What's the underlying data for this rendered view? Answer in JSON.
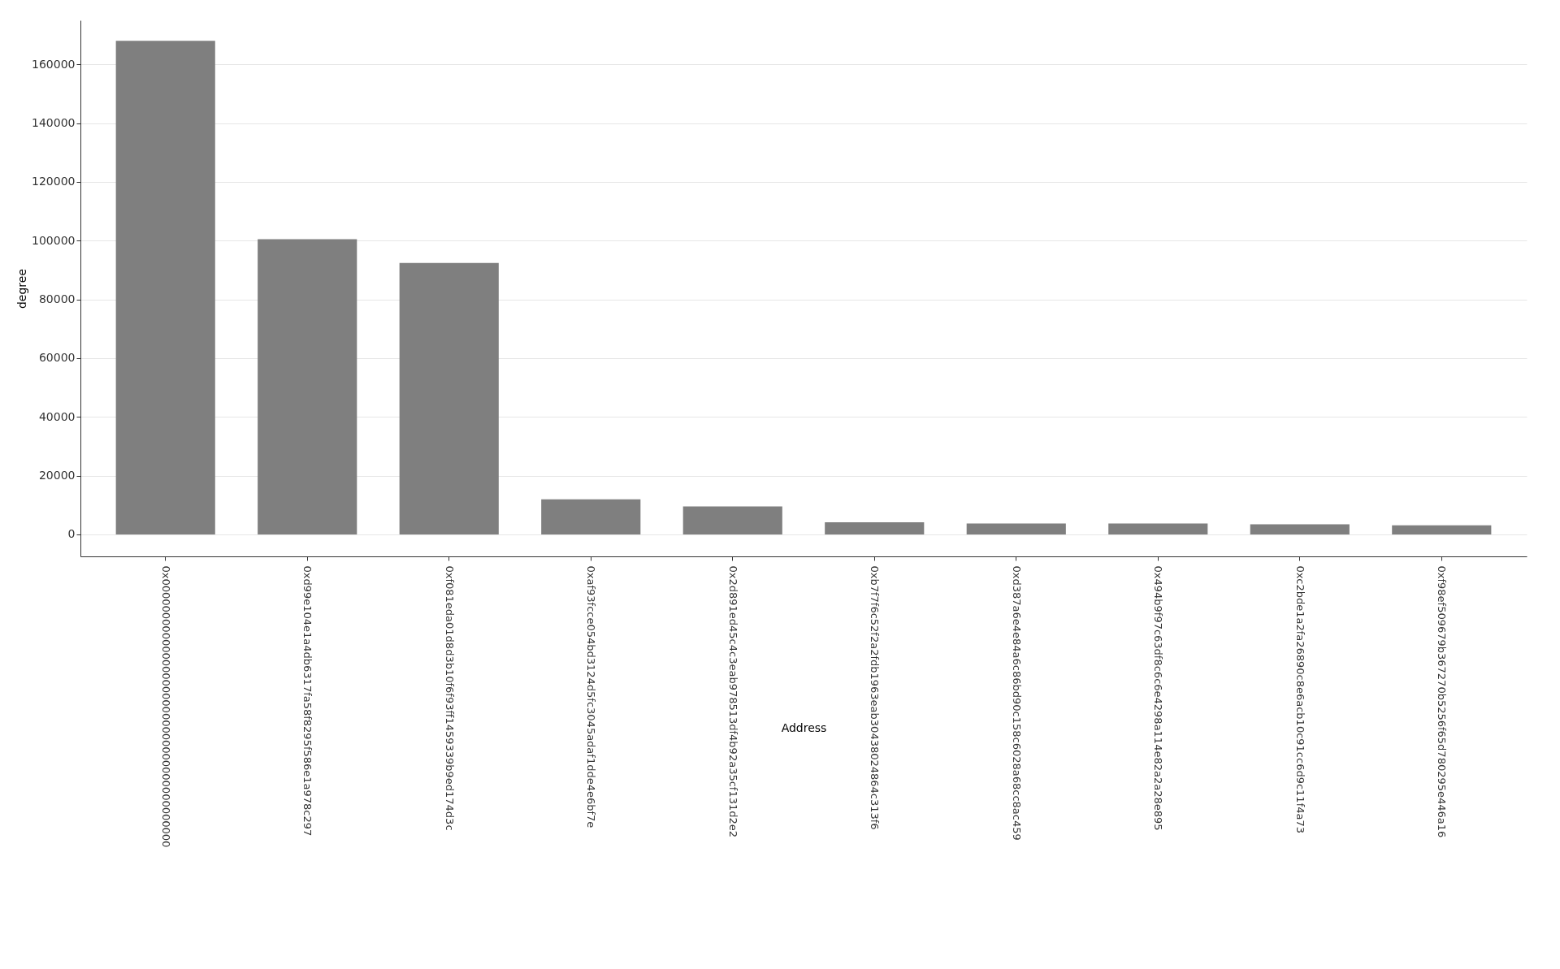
{
  "chart_data": {
    "type": "bar",
    "xlabel": "Address",
    "ylabel": "degree",
    "categories": [
      "0x0000000000000000000000000000000000000000",
      "0xd99e104e1a4db6317fa58f8295f586e1a978c297",
      "0xf081eda01d8d3b10f6f93ff1459339b9ed174d3c",
      "0xaf93fcce054bd3124d5fc3045adaf1dde4e6bf7e",
      "0x2d891ed45c4c3eab978513df4b92a35cf131d2e2",
      "0xb7f7f6c52f2a2fdb1963eab30438024864c313f6",
      "0xd387a6e4e84a6c86bd90c158c6028a68cc8ac459",
      "0x494b9f97c63df8c6c6e4298a114e82a2a28e895",
      "0xc2bde1a2fa26890c8e6acb10c91cc6d9c11f4a73",
      "0xf98ef509679b367270b5256f65d780295e446a16"
    ],
    "values": [
      168000,
      100500,
      92400,
      11900,
      9500,
      4100,
      3700,
      3700,
      3400,
      3100
    ],
    "color": "#7f7f7f",
    "ylim": [
      -7500,
      175000
    ],
    "yticks": [
      0,
      20000,
      40000,
      60000,
      80000,
      100000,
      120000,
      140000,
      160000
    ],
    "grid": "y"
  }
}
